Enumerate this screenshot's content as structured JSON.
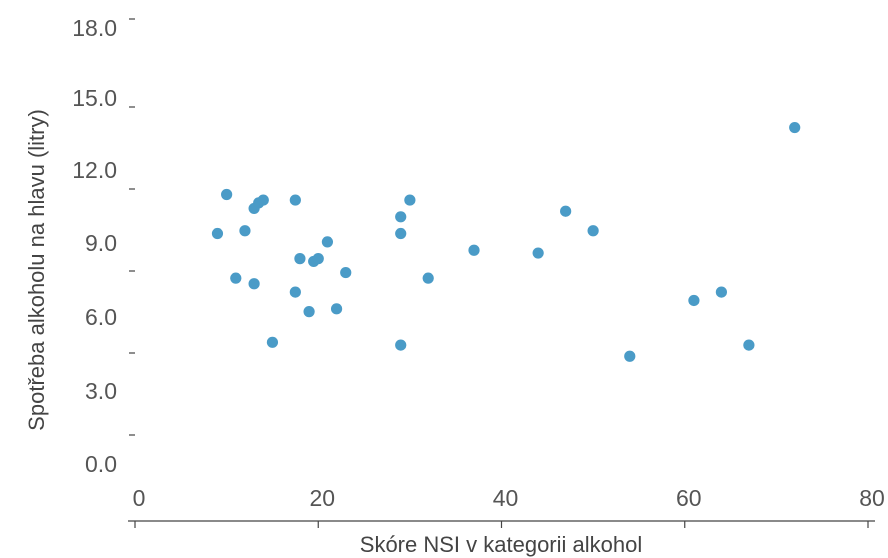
{
  "chart_data": {
    "type": "scatter",
    "title": "",
    "xlabel": "Skóre NSI v kategorii alkohol",
    "ylabel": "Spotřeba alkoholu na hlavu (litry)",
    "xlim": [
      0,
      80
    ],
    "ylim": [
      0,
      18
    ],
    "x_ticks": [
      0,
      20,
      40,
      60,
      80
    ],
    "x_tick_labels": [
      "0",
      "20",
      "40",
      "60",
      "80"
    ],
    "y_tick_labels": [
      "0.0",
      "3.0",
      "6.0",
      "9.0",
      "12.0",
      "15.0",
      "18.0"
    ],
    "grid": false,
    "legend": "none",
    "point_color": "#4a9bc7",
    "series": [
      {
        "x": [
          9,
          10,
          11,
          12,
          13,
          13,
          13.5,
          14,
          15,
          17.5,
          17.5,
          18,
          19,
          19.5,
          20,
          21,
          22,
          23,
          29,
          29,
          29,
          30,
          32,
          37,
          44,
          47,
          50,
          54,
          61,
          64,
          67,
          72
        ],
        "y": [
          10.2,
          11.6,
          8.6,
          10.3,
          11.1,
          8.4,
          11.3,
          11.4,
          6.3,
          11.4,
          8.1,
          9.3,
          7.4,
          9.2,
          9.3,
          9.9,
          7.5,
          8.8,
          10.2,
          6.2,
          10.8,
          11.4,
          8.6,
          9.6,
          9.5,
          11.0,
          10.3,
          5.8,
          7.8,
          8.1,
          6.2,
          14.0
        ]
      }
    ]
  }
}
